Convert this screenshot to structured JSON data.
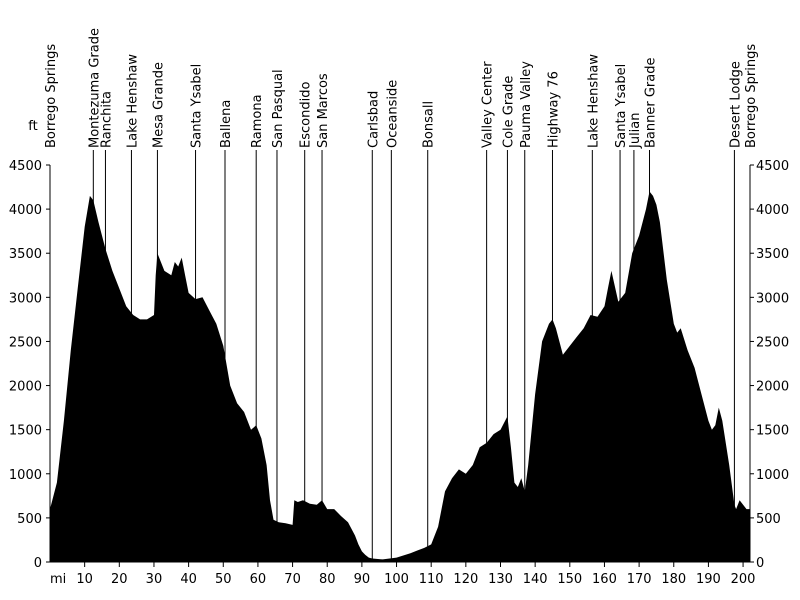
{
  "chart_data": {
    "type": "area",
    "xlabel": "mi",
    "ylabel": "ft",
    "xlim": [
      0,
      202
    ],
    "ylim": [
      0,
      4500
    ],
    "x_ticks": [
      10,
      20,
      30,
      40,
      50,
      60,
      70,
      80,
      90,
      100,
      110,
      120,
      130,
      140,
      150,
      160,
      170,
      180,
      190,
      200
    ],
    "y_ticks": [
      0,
      500,
      1000,
      1500,
      2000,
      2500,
      3000,
      3500,
      4000,
      4500
    ],
    "grid": false,
    "fill_color": "#000000",
    "landmarks": [
      {
        "name": "Borrego Springs",
        "mile": 0
      },
      {
        "name": "Montezuma Grade",
        "mile": 12.5
      },
      {
        "name": "Ranchita",
        "mile": 16
      },
      {
        "name": "Lake Henshaw",
        "mile": 23.5
      },
      {
        "name": "Mesa Grande",
        "mile": 31
      },
      {
        "name": "Santa Ysabel",
        "mile": 42
      },
      {
        "name": "Ballena",
        "mile": 50.5
      },
      {
        "name": "Ramona",
        "mile": 59.5
      },
      {
        "name": "San Pasqual",
        "mile": 65.5
      },
      {
        "name": "Escondido",
        "mile": 73.5
      },
      {
        "name": "San Marcos",
        "mile": 78.5
      },
      {
        "name": "Carlsbad",
        "mile": 93
      },
      {
        "name": "Oceanside",
        "mile": 98.5
      },
      {
        "name": "Bonsall",
        "mile": 109
      },
      {
        "name": "Valley Center",
        "mile": 126
      },
      {
        "name": "Cole Grade",
        "mile": 132
      },
      {
        "name": "Pauma Valley",
        "mile": 137
      },
      {
        "name": "Highway 76",
        "mile": 145
      },
      {
        "name": "Lake Henshaw",
        "mile": 156.5
      },
      {
        "name": "Santa Ysabel",
        "mile": 164.5
      },
      {
        "name": "Julian",
        "mile": 168.5
      },
      {
        "name": "Banner Grade",
        "mile": 173
      },
      {
        "name": "Desert Lodge",
        "mile": 197.5
      },
      {
        "name": "Borrego Springs",
        "mile": 202
      }
    ],
    "series": [
      {
        "x": [
          0,
          2,
          4,
          6,
          8,
          10,
          11.5,
          12.5,
          14,
          16,
          18,
          20,
          22,
          24,
          26,
          28,
          30,
          30.5,
          31,
          33,
          35,
          36,
          37,
          38,
          39,
          40,
          42,
          44,
          46,
          48,
          50,
          52,
          54,
          56,
          58,
          59.5,
          61,
          62.5,
          63.5,
          64.5,
          66,
          68,
          70,
          70.5,
          71.5,
          73,
          75,
          77,
          78.5,
          80,
          82,
          84,
          86,
          88,
          89,
          90,
          91,
          92,
          93,
          96,
          100,
          104,
          106,
          108,
          110,
          112,
          114,
          116,
          118,
          120,
          122,
          124,
          126,
          128,
          130,
          132,
          133,
          134,
          135,
          136,
          137,
          138,
          140,
          142,
          144,
          145,
          146,
          148,
          150,
          152,
          154,
          156,
          158,
          160,
          161,
          162,
          164,
          166,
          168,
          170,
          172,
          173,
          174,
          175,
          176,
          178,
          180,
          181,
          182,
          184,
          186,
          188,
          190,
          191,
          192,
          193,
          194,
          196,
          197.5,
          198,
          199,
          200,
          201,
          202
        ],
        "values": [
          600,
          900,
          1600,
          2400,
          3100,
          3800,
          4150,
          4100,
          3850,
          3550,
          3300,
          3100,
          2900,
          2800,
          2750,
          2750,
          2800,
          3250,
          3500,
          3300,
          3250,
          3400,
          3350,
          3450,
          3250,
          3050,
          2980,
          3000,
          2850,
          2700,
          2450,
          2000,
          1800,
          1700,
          1500,
          1550,
          1400,
          1100,
          700,
          480,
          450,
          440,
          420,
          700,
          680,
          700,
          660,
          650,
          700,
          600,
          600,
          520,
          450,
          300,
          200,
          120,
          80,
          50,
          40,
          30,
          50,
          100,
          130,
          160,
          200,
          400,
          800,
          950,
          1050,
          1000,
          1100,
          1300,
          1350,
          1450,
          1500,
          1650,
          1300,
          900,
          850,
          950,
          800,
          1100,
          1900,
          2500,
          2700,
          2750,
          2650,
          2350,
          2450,
          2550,
          2650,
          2800,
          2780,
          2900,
          3100,
          3300,
          2950,
          3050,
          3500,
          3700,
          4000,
          4200,
          4150,
          4050,
          3850,
          3200,
          2700,
          2600,
          2650,
          2400,
          2200,
          1900,
          1600,
          1500,
          1550,
          1750,
          1600,
          1100,
          650,
          600,
          700,
          650,
          600,
          600
        ]
      }
    ]
  }
}
